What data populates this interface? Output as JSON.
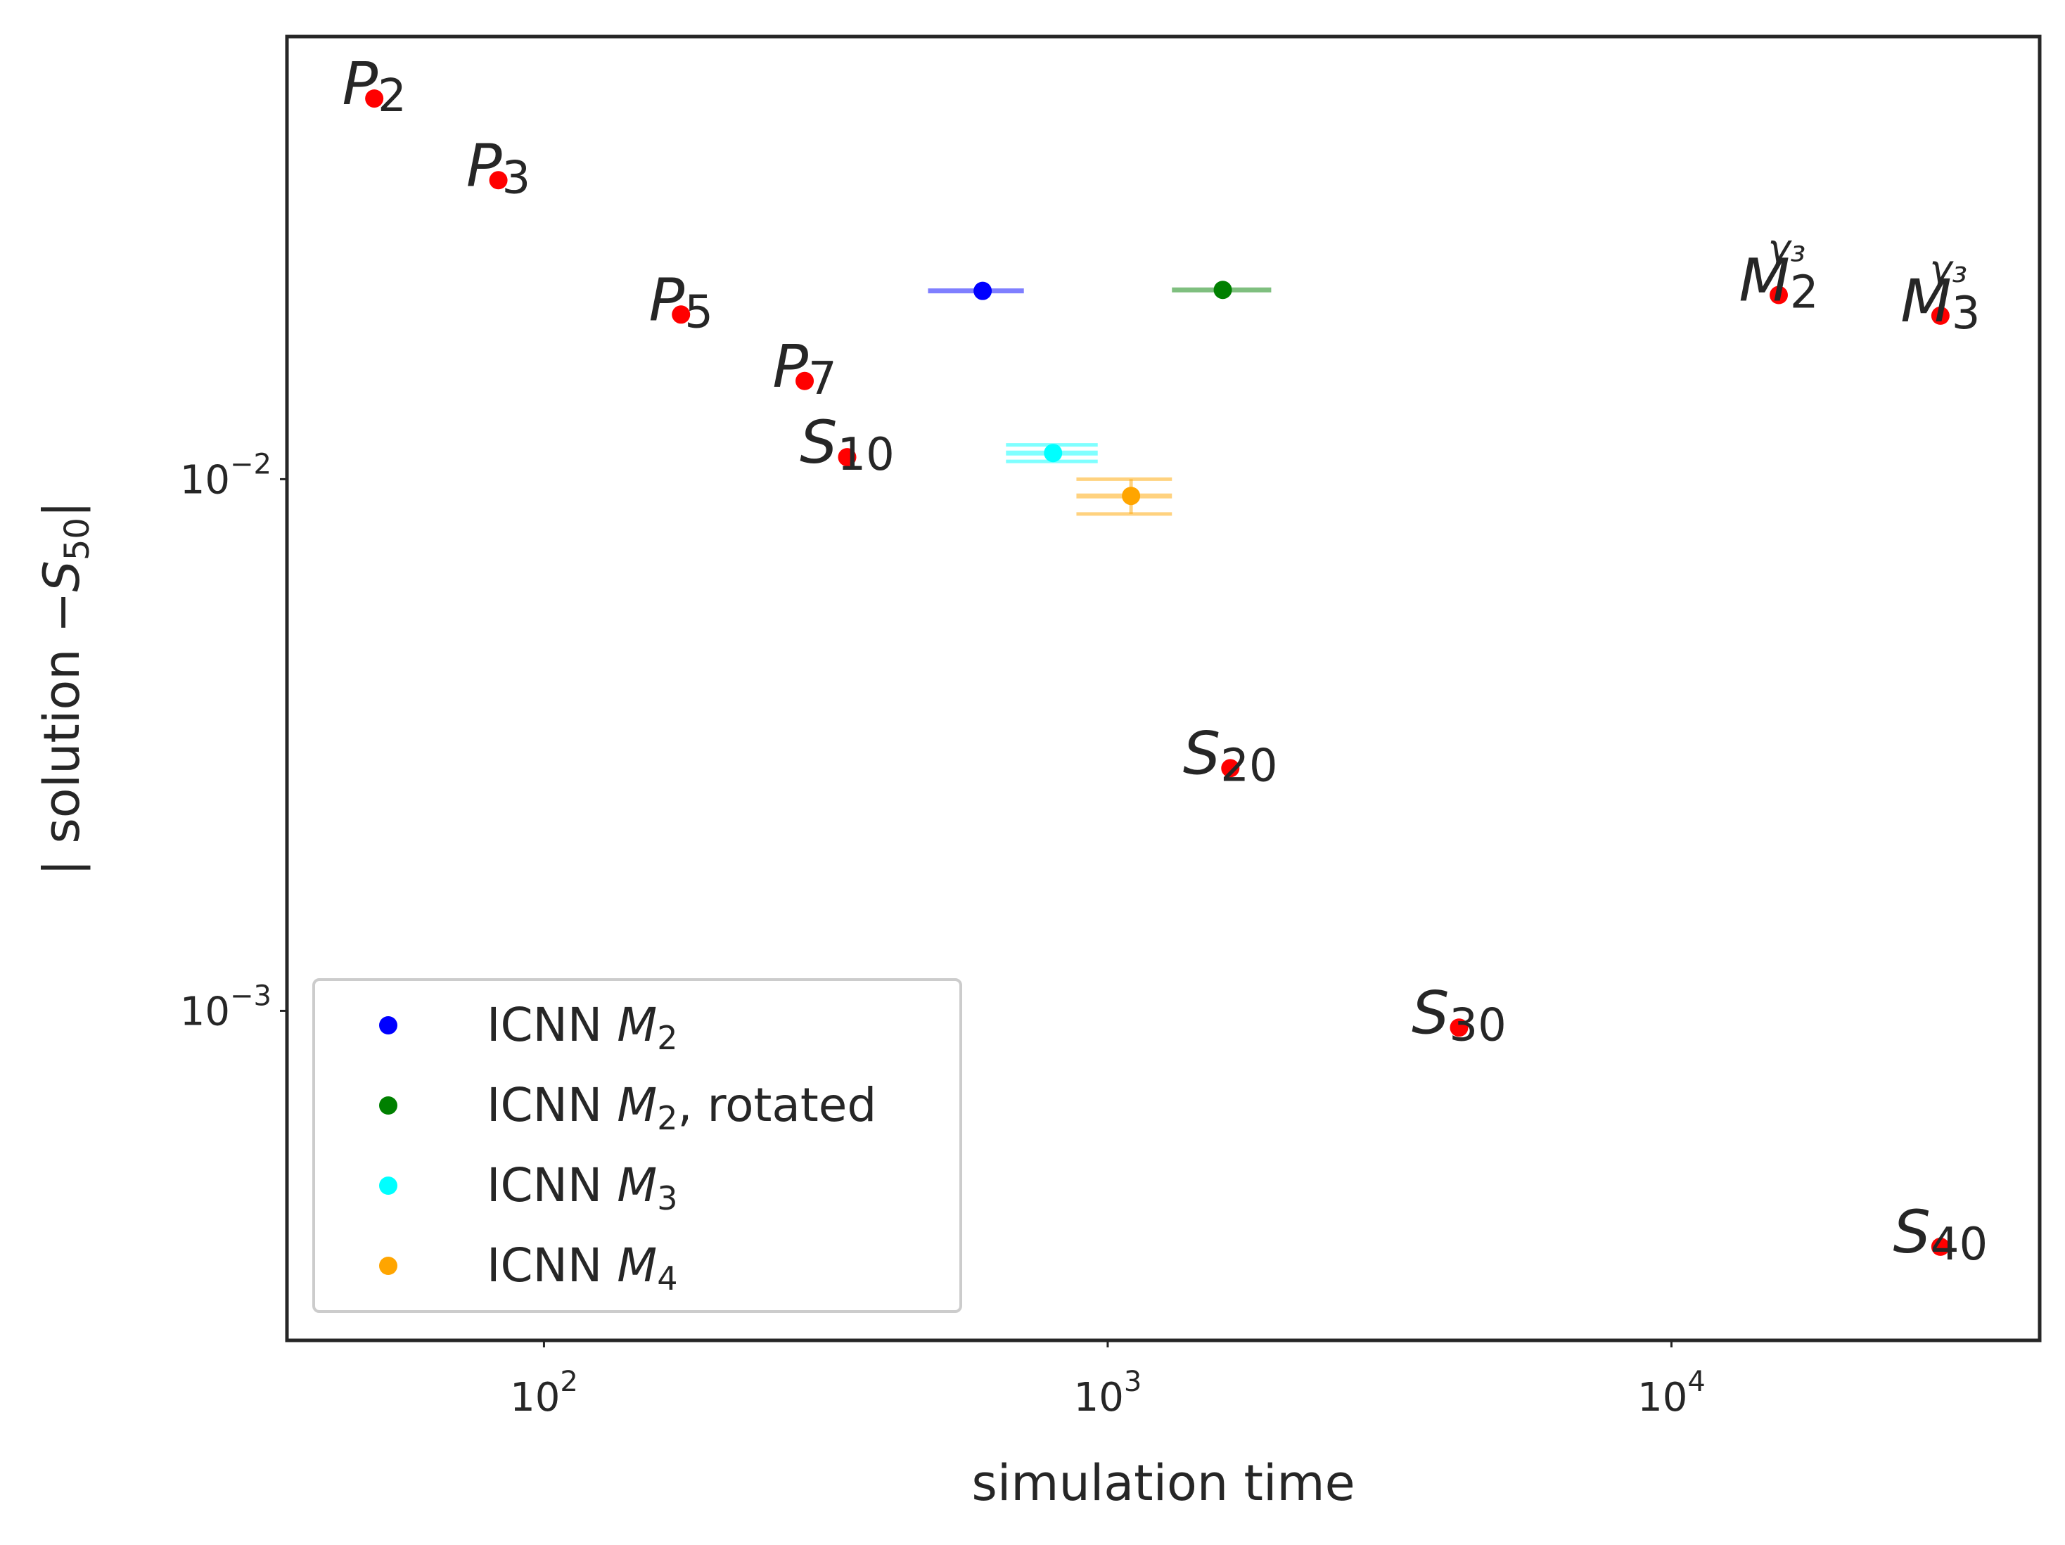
{
  "chart_data": {
    "type": "scatter",
    "title": "",
    "xlabel": "simulation time",
    "ylabel_prefix": "| solution −",
    "ylabel_symbol": "S",
    "ylabel_sub": "50",
    "ylabel_suffix": "|",
    "xscale": "log",
    "yscale": "log",
    "xlim": [
      35,
      45000
    ],
    "ylim": [
      0.00024,
      0.068
    ],
    "grid": false,
    "legend_placement": "lower-left",
    "x_ticks": [
      {
        "value": 100,
        "base": "10",
        "exp": "2"
      },
      {
        "value": 1000,
        "base": "10",
        "exp": "3"
      },
      {
        "value": 10000,
        "base": "10",
        "exp": "4"
      }
    ],
    "y_ticks": [
      {
        "value": 0.01,
        "base": "10",
        "exp": "−2"
      },
      {
        "value": 0.001,
        "base": "10",
        "exp": "−3"
      }
    ],
    "reference_points": {
      "color": "#ff0000",
      "points": [
        {
          "x": 50,
          "y": 0.052,
          "sym": "P",
          "sub": "2",
          "sup": ""
        },
        {
          "x": 83,
          "y": 0.0365,
          "sym": "P",
          "sub": "3",
          "sup": ""
        },
        {
          "x": 175,
          "y": 0.0204,
          "sym": "P",
          "sub": "5",
          "sup": ""
        },
        {
          "x": 290,
          "y": 0.0153,
          "sym": "P",
          "sub": "7",
          "sup": ""
        },
        {
          "x": 345,
          "y": 0.011,
          "sym": "S",
          "sub": "10",
          "sup": ""
        },
        {
          "x": 1650,
          "y": 0.00286,
          "sym": "S",
          "sub": "20",
          "sup": ""
        },
        {
          "x": 4200,
          "y": 0.00093,
          "sym": "S",
          "sub": "30",
          "sup": ""
        },
        {
          "x": 15500,
          "y": 0.0222,
          "sym": "M",
          "sub": "2",
          "sup": "γ₃"
        },
        {
          "x": 30000,
          "y": 0.0203,
          "sym": "M",
          "sub": "3",
          "sup": "γ₃"
        },
        {
          "x": 30000,
          "y": 0.00036,
          "sym": "S",
          "sub": "40",
          "sup": ""
        }
      ]
    },
    "series": [
      {
        "name": "ICNN ",
        "sym": "M",
        "sub": "2",
        "suffix": "",
        "color": "#0000ff",
        "x": 600,
        "y": 0.0226,
        "xerr": [
          480,
          710
        ],
        "yerr": [
          0.0226,
          0.0226
        ]
      },
      {
        "name": "ICNN ",
        "sym": "M",
        "sub": "2",
        "suffix": ", rotated",
        "color": "#008000",
        "x": 1600,
        "y": 0.0227,
        "xerr": [
          1300,
          1950
        ],
        "yerr": [
          0.0227,
          0.0227
        ]
      },
      {
        "name": "ICNN ",
        "sym": "M",
        "sub": "3",
        "suffix": "",
        "color": "#00ffff",
        "x": 800,
        "y": 0.0112,
        "xerr": [
          660,
          960
        ],
        "yerr": [
          0.0108,
          0.0116
        ]
      },
      {
        "name": "ICNN ",
        "sym": "M",
        "sub": "4",
        "suffix": "",
        "color": "#ffa500",
        "x": 1100,
        "y": 0.0093,
        "xerr": [
          880,
          1300
        ],
        "yerr": [
          0.0086,
          0.01
        ]
      }
    ]
  }
}
